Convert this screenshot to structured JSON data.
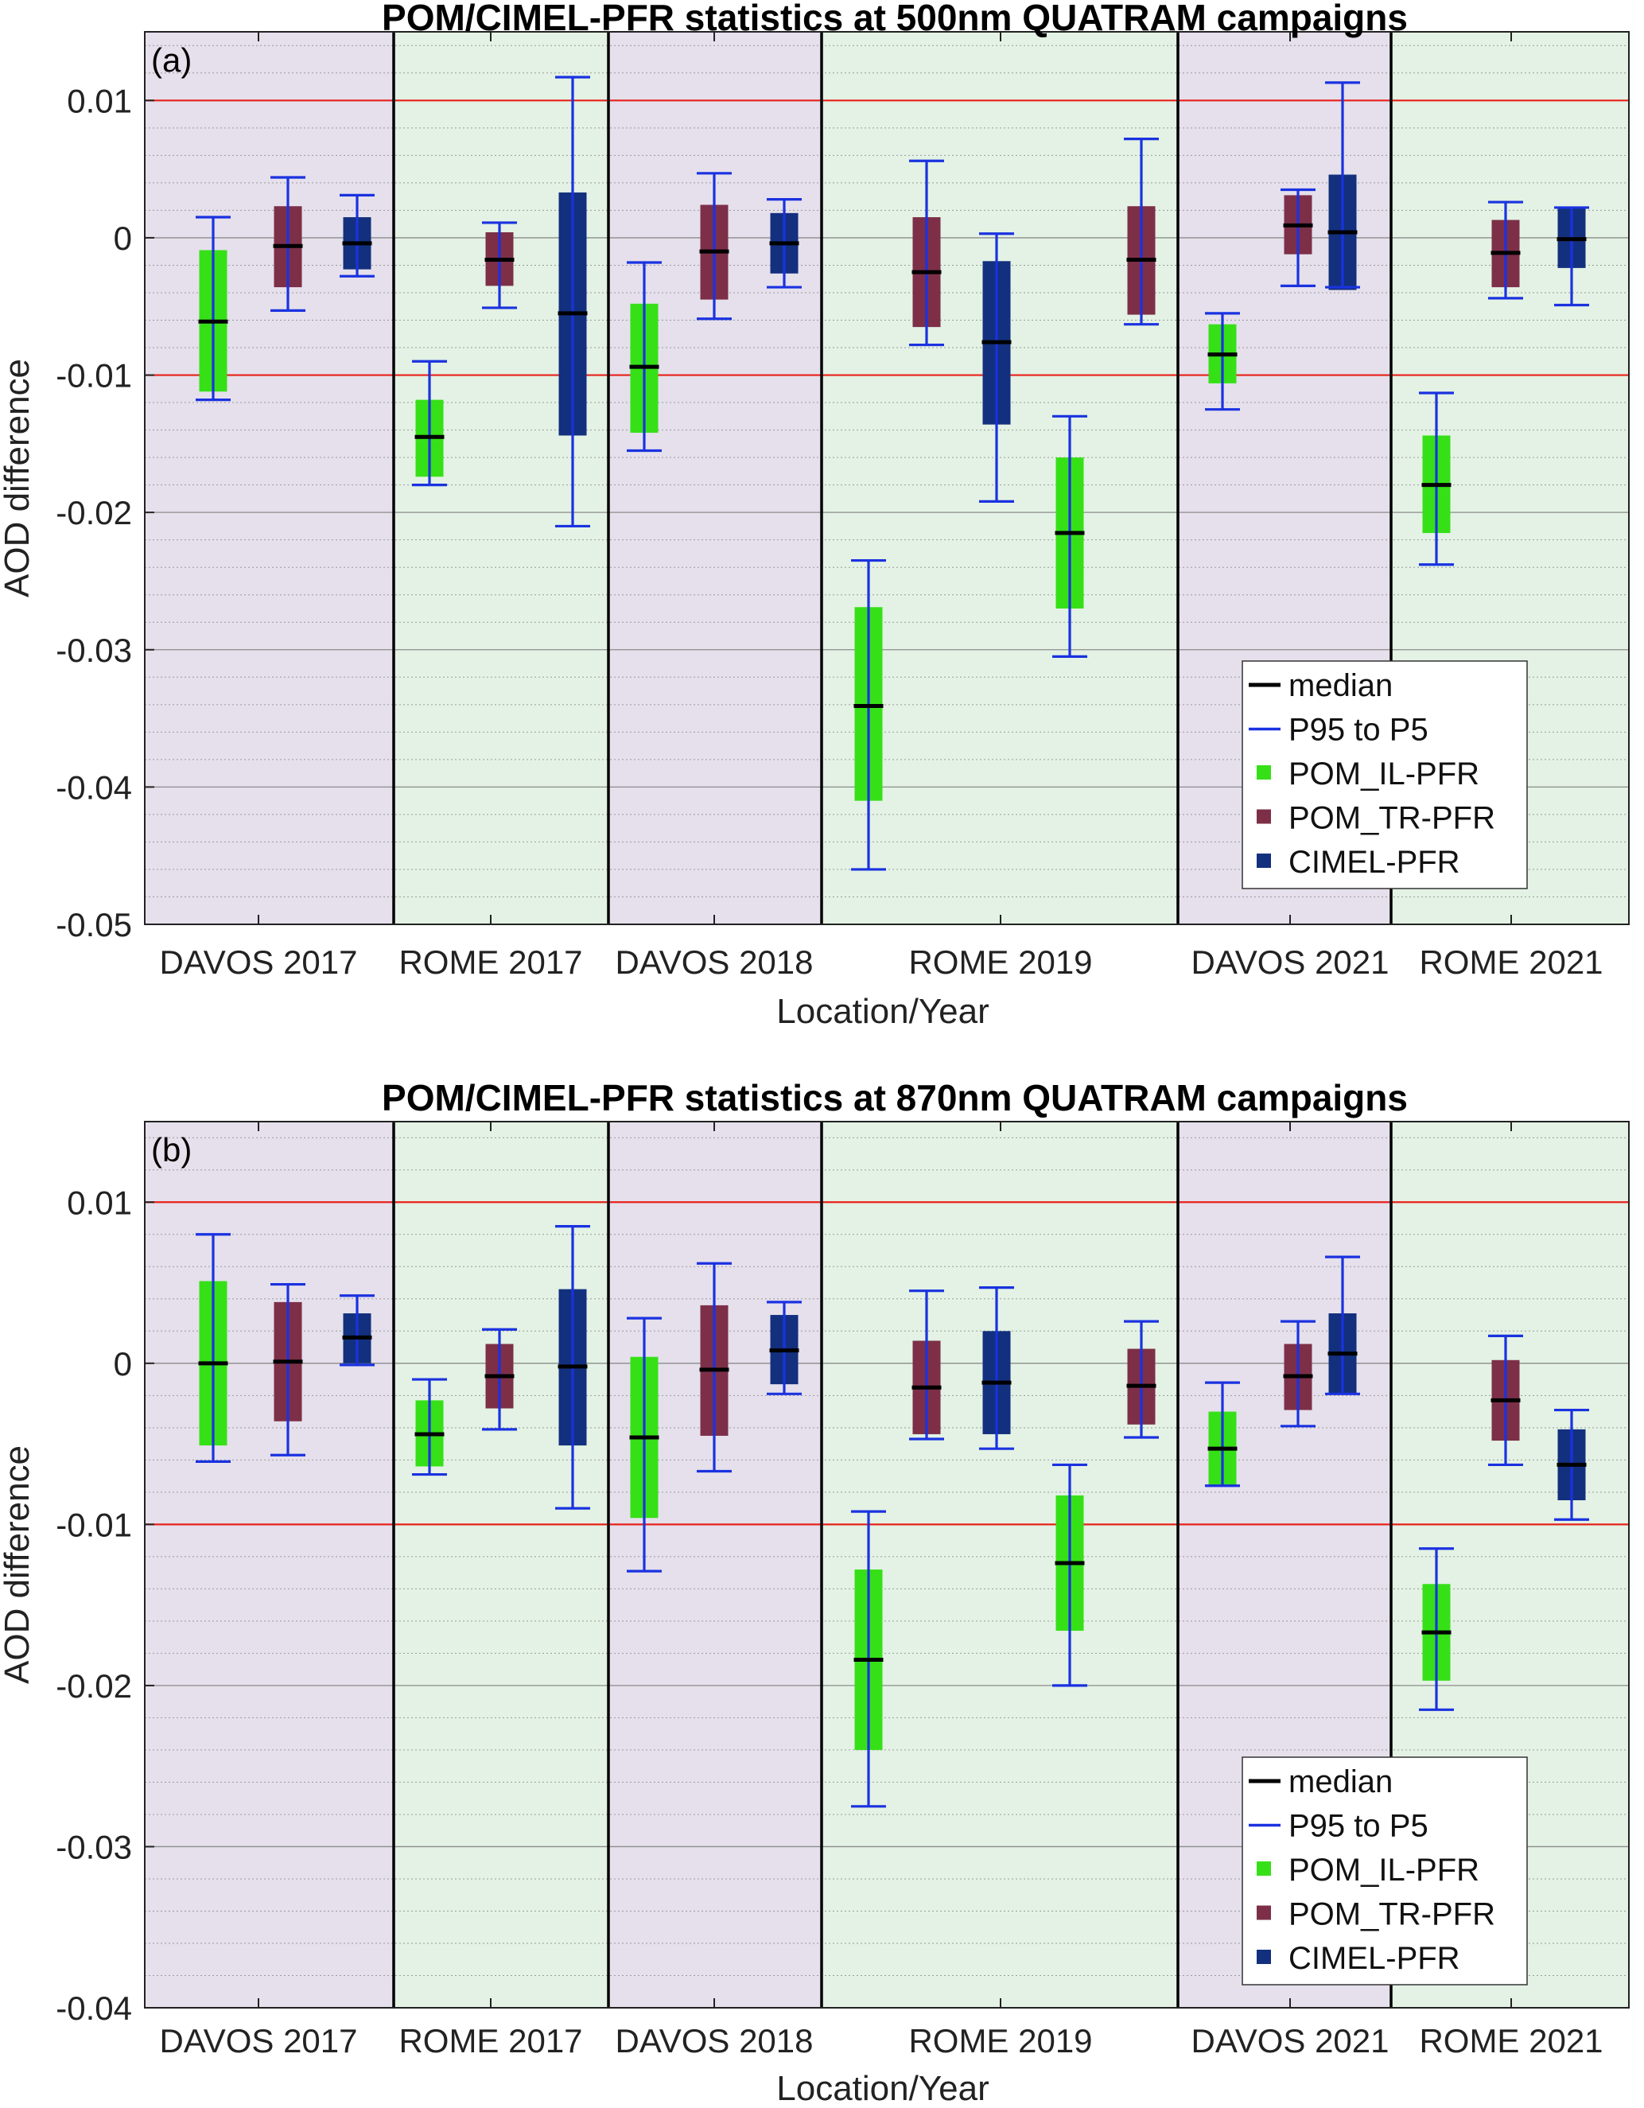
{
  "chart_data": [
    {
      "type": "box",
      "panel_label": "(a)",
      "title": "POM/CIMEL-PFR statistics at 500nm QUATRAM campaigns",
      "xlabel": "Location/Year",
      "ylabel": "AOD difference",
      "ylim": [
        -0.05,
        0.015
      ],
      "yticks": [
        -0.05,
        -0.04,
        -0.03,
        -0.02,
        -0.01,
        0,
        0.01
      ],
      "ytick_labels": [
        "-0.05",
        "-0.04",
        "-0.03",
        "-0.02",
        "-0.01",
        "0",
        "0.01"
      ],
      "minor_grid": true,
      "reference_lines": [
        0.01,
        -0.01
      ],
      "categories": [
        "DAVOS 2017",
        "ROME 2017",
        "DAVOS 2018",
        "ROME 2019",
        "DAVOS 2021",
        "ROME 2021"
      ],
      "legend": {
        "position": "bottom-right",
        "entries": [
          {
            "label": "median",
            "color": "#000000",
            "kind": "line"
          },
          {
            "label": "P95 to P5",
            "color": "#1a32e0",
            "kind": "line"
          },
          {
            "label": "POM_IL-PFR",
            "color": "#36e017",
            "kind": "square"
          },
          {
            "label": "POM_TR-PFR",
            "color": "#7d2f48",
            "kind": "square"
          },
          {
            "label": "CIMEL-PFR",
            "color": "#13307e",
            "kind": "square"
          }
        ]
      },
      "series": [
        {
          "name": "POM_IL-PFR",
          "color": "#36e017",
          "boxes": [
            {
              "category": "DAVOS 2017",
              "p5": -0.0118,
              "q1": -0.0112,
              "median": -0.0061,
              "q3": -0.0009,
              "p95": 0.0015
            },
            {
              "category": "ROME 2017",
              "p5": -0.018,
              "q1": -0.0174,
              "median": -0.0145,
              "q3": -0.0118,
              "p95": -0.009
            },
            {
              "category": "DAVOS 2018",
              "p5": -0.0155,
              "q1": -0.0142,
              "median": -0.0094,
              "q3": -0.0048,
              "p95": -0.0018
            },
            {
              "category": "ROME 2019",
              "p5": -0.046,
              "q1": -0.041,
              "median": -0.0341,
              "q3": -0.0269,
              "p95": -0.0235
            },
            {
              "category": "ROME 2019",
              "p5": -0.0305,
              "q1": -0.027,
              "median": -0.0215,
              "q3": -0.016,
              "p95": -0.013
            },
            {
              "category": "DAVOS 2021",
              "p5": -0.0125,
              "q1": -0.0106,
              "median": -0.0085,
              "q3": -0.0063,
              "p95": -0.0055
            },
            {
              "category": "ROME 2021",
              "p5": -0.0238,
              "q1": -0.0215,
              "median": -0.018,
              "q3": -0.0144,
              "p95": -0.0113
            }
          ]
        },
        {
          "name": "POM_TR-PFR",
          "color": "#7d2f48",
          "boxes": [
            {
              "category": "DAVOS 2017",
              "p5": -0.0053,
              "q1": -0.0036,
              "median": -0.0006,
              "q3": 0.0023,
              "p95": 0.0044
            },
            {
              "category": "ROME 2017",
              "p5": -0.0051,
              "q1": -0.0035,
              "median": -0.0016,
              "q3": 0.0004,
              "p95": 0.0011
            },
            {
              "category": "DAVOS 2018",
              "p5": -0.0059,
              "q1": -0.0045,
              "median": -0.001,
              "q3": 0.0024,
              "p95": 0.0047
            },
            {
              "category": "ROME 2019",
              "p5": -0.0078,
              "q1": -0.0065,
              "median": -0.0025,
              "q3": 0.0015,
              "p95": 0.0056
            },
            {
              "category": "ROME 2019",
              "p5": -0.0063,
              "q1": -0.0056,
              "median": -0.0016,
              "q3": 0.0023,
              "p95": 0.0072
            },
            {
              "category": "DAVOS 2021",
              "p5": -0.0035,
              "q1": -0.0012,
              "median": 0.0009,
              "q3": 0.0031,
              "p95": 0.0035
            },
            {
              "category": "ROME 2021",
              "p5": -0.0044,
              "q1": -0.0036,
              "median": -0.0011,
              "q3": 0.0013,
              "p95": 0.0026
            }
          ]
        },
        {
          "name": "CIMEL-PFR",
          "color": "#13307e",
          "boxes": [
            {
              "category": "DAVOS 2017",
              "p5": -0.0028,
              "q1": -0.0023,
              "median": -0.0004,
              "q3": 0.0015,
              "p95": 0.0031
            },
            {
              "category": "ROME 2017",
              "p5": -0.021,
              "q1": -0.0144,
              "median": -0.0055,
              "q3": 0.0033,
              "p95": 0.0117
            },
            {
              "category": "DAVOS 2018",
              "p5": -0.0036,
              "q1": -0.0026,
              "median": -0.0004,
              "q3": 0.0018,
              "p95": 0.0028
            },
            {
              "category": "ROME 2019",
              "p5": -0.0192,
              "q1": -0.0136,
              "median": -0.0076,
              "q3": -0.0017,
              "p95": 0.0003
            },
            {
              "category": "DAVOS 2021",
              "p5": -0.0036,
              "q1": -0.0038,
              "median": 0.0004,
              "q3": 0.0046,
              "p95": 0.0113
            },
            {
              "category": "ROME 2021",
              "p5": -0.0049,
              "q1": -0.0022,
              "median": -0.0001,
              "q3": 0.0022,
              "p95": 0.0022
            }
          ]
        }
      ]
    },
    {
      "type": "box",
      "panel_label": "(b)",
      "title": "POM/CIMEL-PFR statistics at 870nm QUATRAM campaigns",
      "xlabel": "Location/Year",
      "ylabel": "AOD difference",
      "ylim": [
        -0.04,
        0.015
      ],
      "yticks": [
        -0.04,
        -0.03,
        -0.02,
        -0.01,
        0,
        0.01
      ],
      "ytick_labels": [
        "-0.04",
        "-0.03",
        "-0.02",
        "-0.01",
        "0",
        "0.01"
      ],
      "minor_grid": true,
      "reference_lines": [
        0.01,
        -0.01
      ],
      "categories": [
        "DAVOS 2017",
        "ROME 2017",
        "DAVOS 2018",
        "ROME 2019",
        "DAVOS 2021",
        "ROME 2021"
      ],
      "legend": {
        "position": "bottom-right",
        "entries": [
          {
            "label": "median",
            "color": "#000000",
            "kind": "line"
          },
          {
            "label": "P95 to P5",
            "color": "#1a32e0",
            "kind": "line"
          },
          {
            "label": "POM_IL-PFR",
            "color": "#36e017",
            "kind": "square"
          },
          {
            "label": "POM_TR-PFR",
            "color": "#7d2f48",
            "kind": "square"
          },
          {
            "label": "CIMEL-PFR",
            "color": "#13307e",
            "kind": "square"
          }
        ]
      },
      "series": [
        {
          "name": "POM_IL-PFR",
          "color": "#36e017",
          "boxes": [
            {
              "category": "DAVOS 2017",
              "p5": -0.0061,
              "q1": -0.0051,
              "median": 0.0,
              "q3": 0.0051,
              "p95": 0.008
            },
            {
              "category": "ROME 2017",
              "p5": -0.0069,
              "q1": -0.0064,
              "median": -0.0044,
              "q3": -0.0023,
              "p95": -0.001
            },
            {
              "category": "DAVOS 2018",
              "p5": -0.0129,
              "q1": -0.0096,
              "median": -0.0046,
              "q3": 0.0004,
              "p95": 0.0028
            },
            {
              "category": "ROME 2019",
              "p5": -0.0275,
              "q1": -0.024,
              "median": -0.0184,
              "q3": -0.0128,
              "p95": -0.0092
            },
            {
              "category": "ROME 2019",
              "p5": -0.02,
              "q1": -0.0166,
              "median": -0.0124,
              "q3": -0.0082,
              "p95": -0.0063
            },
            {
              "category": "DAVOS 2021",
              "p5": -0.0076,
              "q1": -0.0076,
              "median": -0.0053,
              "q3": -0.003,
              "p95": -0.0012
            },
            {
              "category": "ROME 2021",
              "p5": -0.0215,
              "q1": -0.0197,
              "median": -0.0167,
              "q3": -0.0137,
              "p95": -0.0115
            }
          ]
        },
        {
          "name": "POM_TR-PFR",
          "color": "#7d2f48",
          "boxes": [
            {
              "category": "DAVOS 2017",
              "p5": -0.0057,
              "q1": -0.0036,
              "median": 0.0001,
              "q3": 0.0038,
              "p95": 0.0049
            },
            {
              "category": "ROME 2017",
              "p5": -0.0041,
              "q1": -0.0028,
              "median": -0.0008,
              "q3": 0.0012,
              "p95": 0.0021
            },
            {
              "category": "DAVOS 2018",
              "p5": -0.0067,
              "q1": -0.0045,
              "median": -0.0004,
              "q3": 0.0036,
              "p95": 0.0062
            },
            {
              "category": "ROME 2019",
              "p5": -0.0047,
              "q1": -0.0044,
              "median": -0.0015,
              "q3": 0.0014,
              "p95": 0.0045
            },
            {
              "category": "ROME 2019",
              "p5": -0.0046,
              "q1": -0.0038,
              "median": -0.0014,
              "q3": 0.0009,
              "p95": 0.0026
            },
            {
              "category": "DAVOS 2021",
              "p5": -0.0039,
              "q1": -0.0029,
              "median": -0.0008,
              "q3": 0.0012,
              "p95": 0.0026
            },
            {
              "category": "ROME 2021",
              "p5": -0.0063,
              "q1": -0.0048,
              "median": -0.0023,
              "q3": 0.0002,
              "p95": 0.0017
            }
          ]
        },
        {
          "name": "CIMEL-PFR",
          "color": "#13307e",
          "boxes": [
            {
              "category": "DAVOS 2017",
              "p5": -0.0001,
              "q1": 0.0,
              "median": 0.0016,
              "q3": 0.0031,
              "p95": 0.0042
            },
            {
              "category": "ROME 2017",
              "p5": -0.009,
              "q1": -0.0051,
              "median": -0.0002,
              "q3": 0.0046,
              "p95": 0.0085
            },
            {
              "category": "DAVOS 2018",
              "p5": -0.0019,
              "q1": -0.0013,
              "median": 0.0008,
              "q3": 0.003,
              "p95": 0.0038
            },
            {
              "category": "ROME 2019",
              "p5": -0.0053,
              "q1": -0.0044,
              "median": -0.0012,
              "q3": 0.002,
              "p95": 0.0047
            },
            {
              "category": "DAVOS 2021",
              "p5": -0.0019,
              "q1": -0.0019,
              "median": 0.0006,
              "q3": 0.0031,
              "p95": 0.0066
            },
            {
              "category": "ROME 2021",
              "p5": -0.0097,
              "q1": -0.0085,
              "median": -0.0063,
              "q3": -0.0041,
              "p95": -0.0029
            }
          ]
        }
      ]
    }
  ]
}
